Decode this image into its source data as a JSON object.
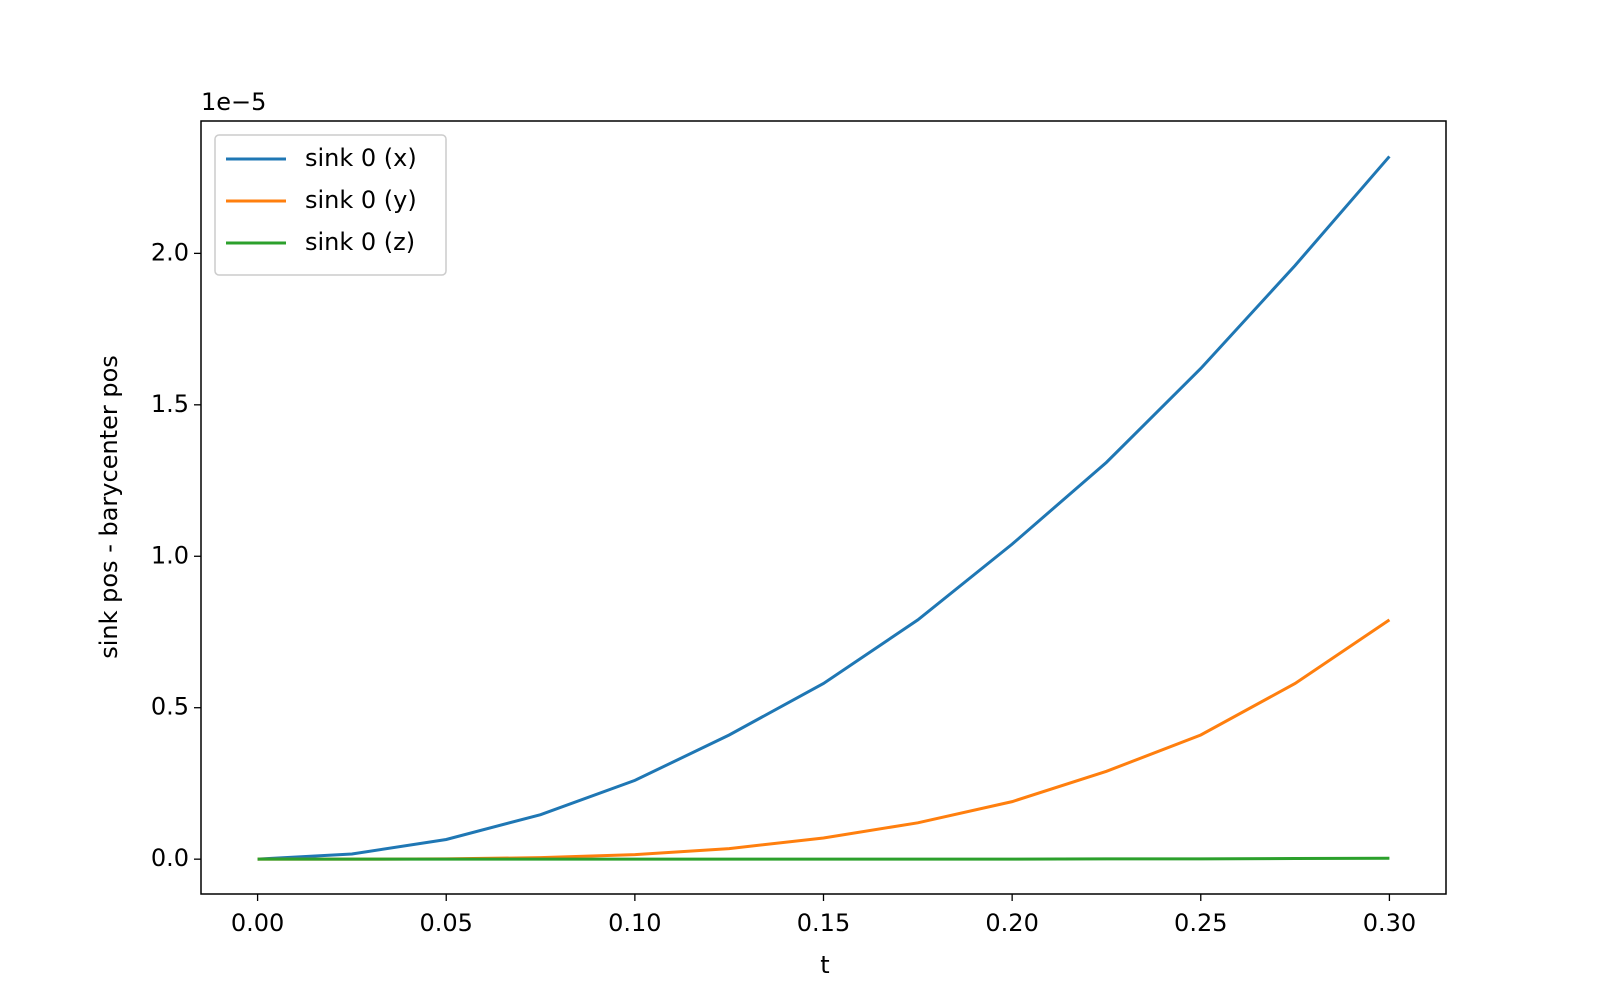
{
  "chart_data": {
    "type": "line",
    "y_label": "sink pos - barycenter pos",
    "x_label": "t",
    "y_offset_label": "1e−5",
    "x": [
      0,
      0.025,
      0.05,
      0.075,
      0.1,
      0.125,
      0.15,
      0.175,
      0.2,
      0.225,
      0.25,
      0.275,
      0.3
    ],
    "series": [
      {
        "name": "sink 0 (x)",
        "color": "#1f77b4",
        "values": [
          0,
          0.017,
          0.065,
          0.147,
          0.26,
          0.41,
          0.58,
          0.79,
          1.04,
          1.31,
          1.62,
          1.96,
          2.32
        ]
      },
      {
        "name": "sink 0 (y)",
        "color": "#ff7f0e",
        "values": [
          0,
          0,
          0.001,
          0.005,
          0.015,
          0.035,
          0.07,
          0.12,
          0.19,
          0.29,
          0.41,
          0.58,
          0.79
        ]
      },
      {
        "name": "sink 0 (z)",
        "color": "#2ca02c",
        "values": [
          0,
          0,
          0,
          0,
          0,
          0,
          0,
          0,
          0,
          0.001,
          0.001,
          0.002,
          0.003
        ]
      }
    ],
    "xlim": [
      -0.015,
      0.315
    ],
    "ylim": [
      -0.115,
      2.437
    ],
    "xticks": [
      {
        "value": 0,
        "label": "0.00"
      },
      {
        "value": 0.05,
        "label": "0.05"
      },
      {
        "value": 0.1,
        "label": "0.10"
      },
      {
        "value": 0.15,
        "label": "0.15"
      },
      {
        "value": 0.2,
        "label": "0.20"
      },
      {
        "value": 0.25,
        "label": "0.25"
      },
      {
        "value": 0.3,
        "label": "0.30"
      }
    ],
    "yticks": [
      {
        "value": 0,
        "label": "0.0"
      },
      {
        "value": 0.5,
        "label": "0.5"
      },
      {
        "value": 1,
        "label": "1.0"
      },
      {
        "value": 1.5,
        "label": "1.5"
      },
      {
        "value": 2,
        "label": "2.0"
      }
    ],
    "legend": "upper left",
    "grid": false
  }
}
